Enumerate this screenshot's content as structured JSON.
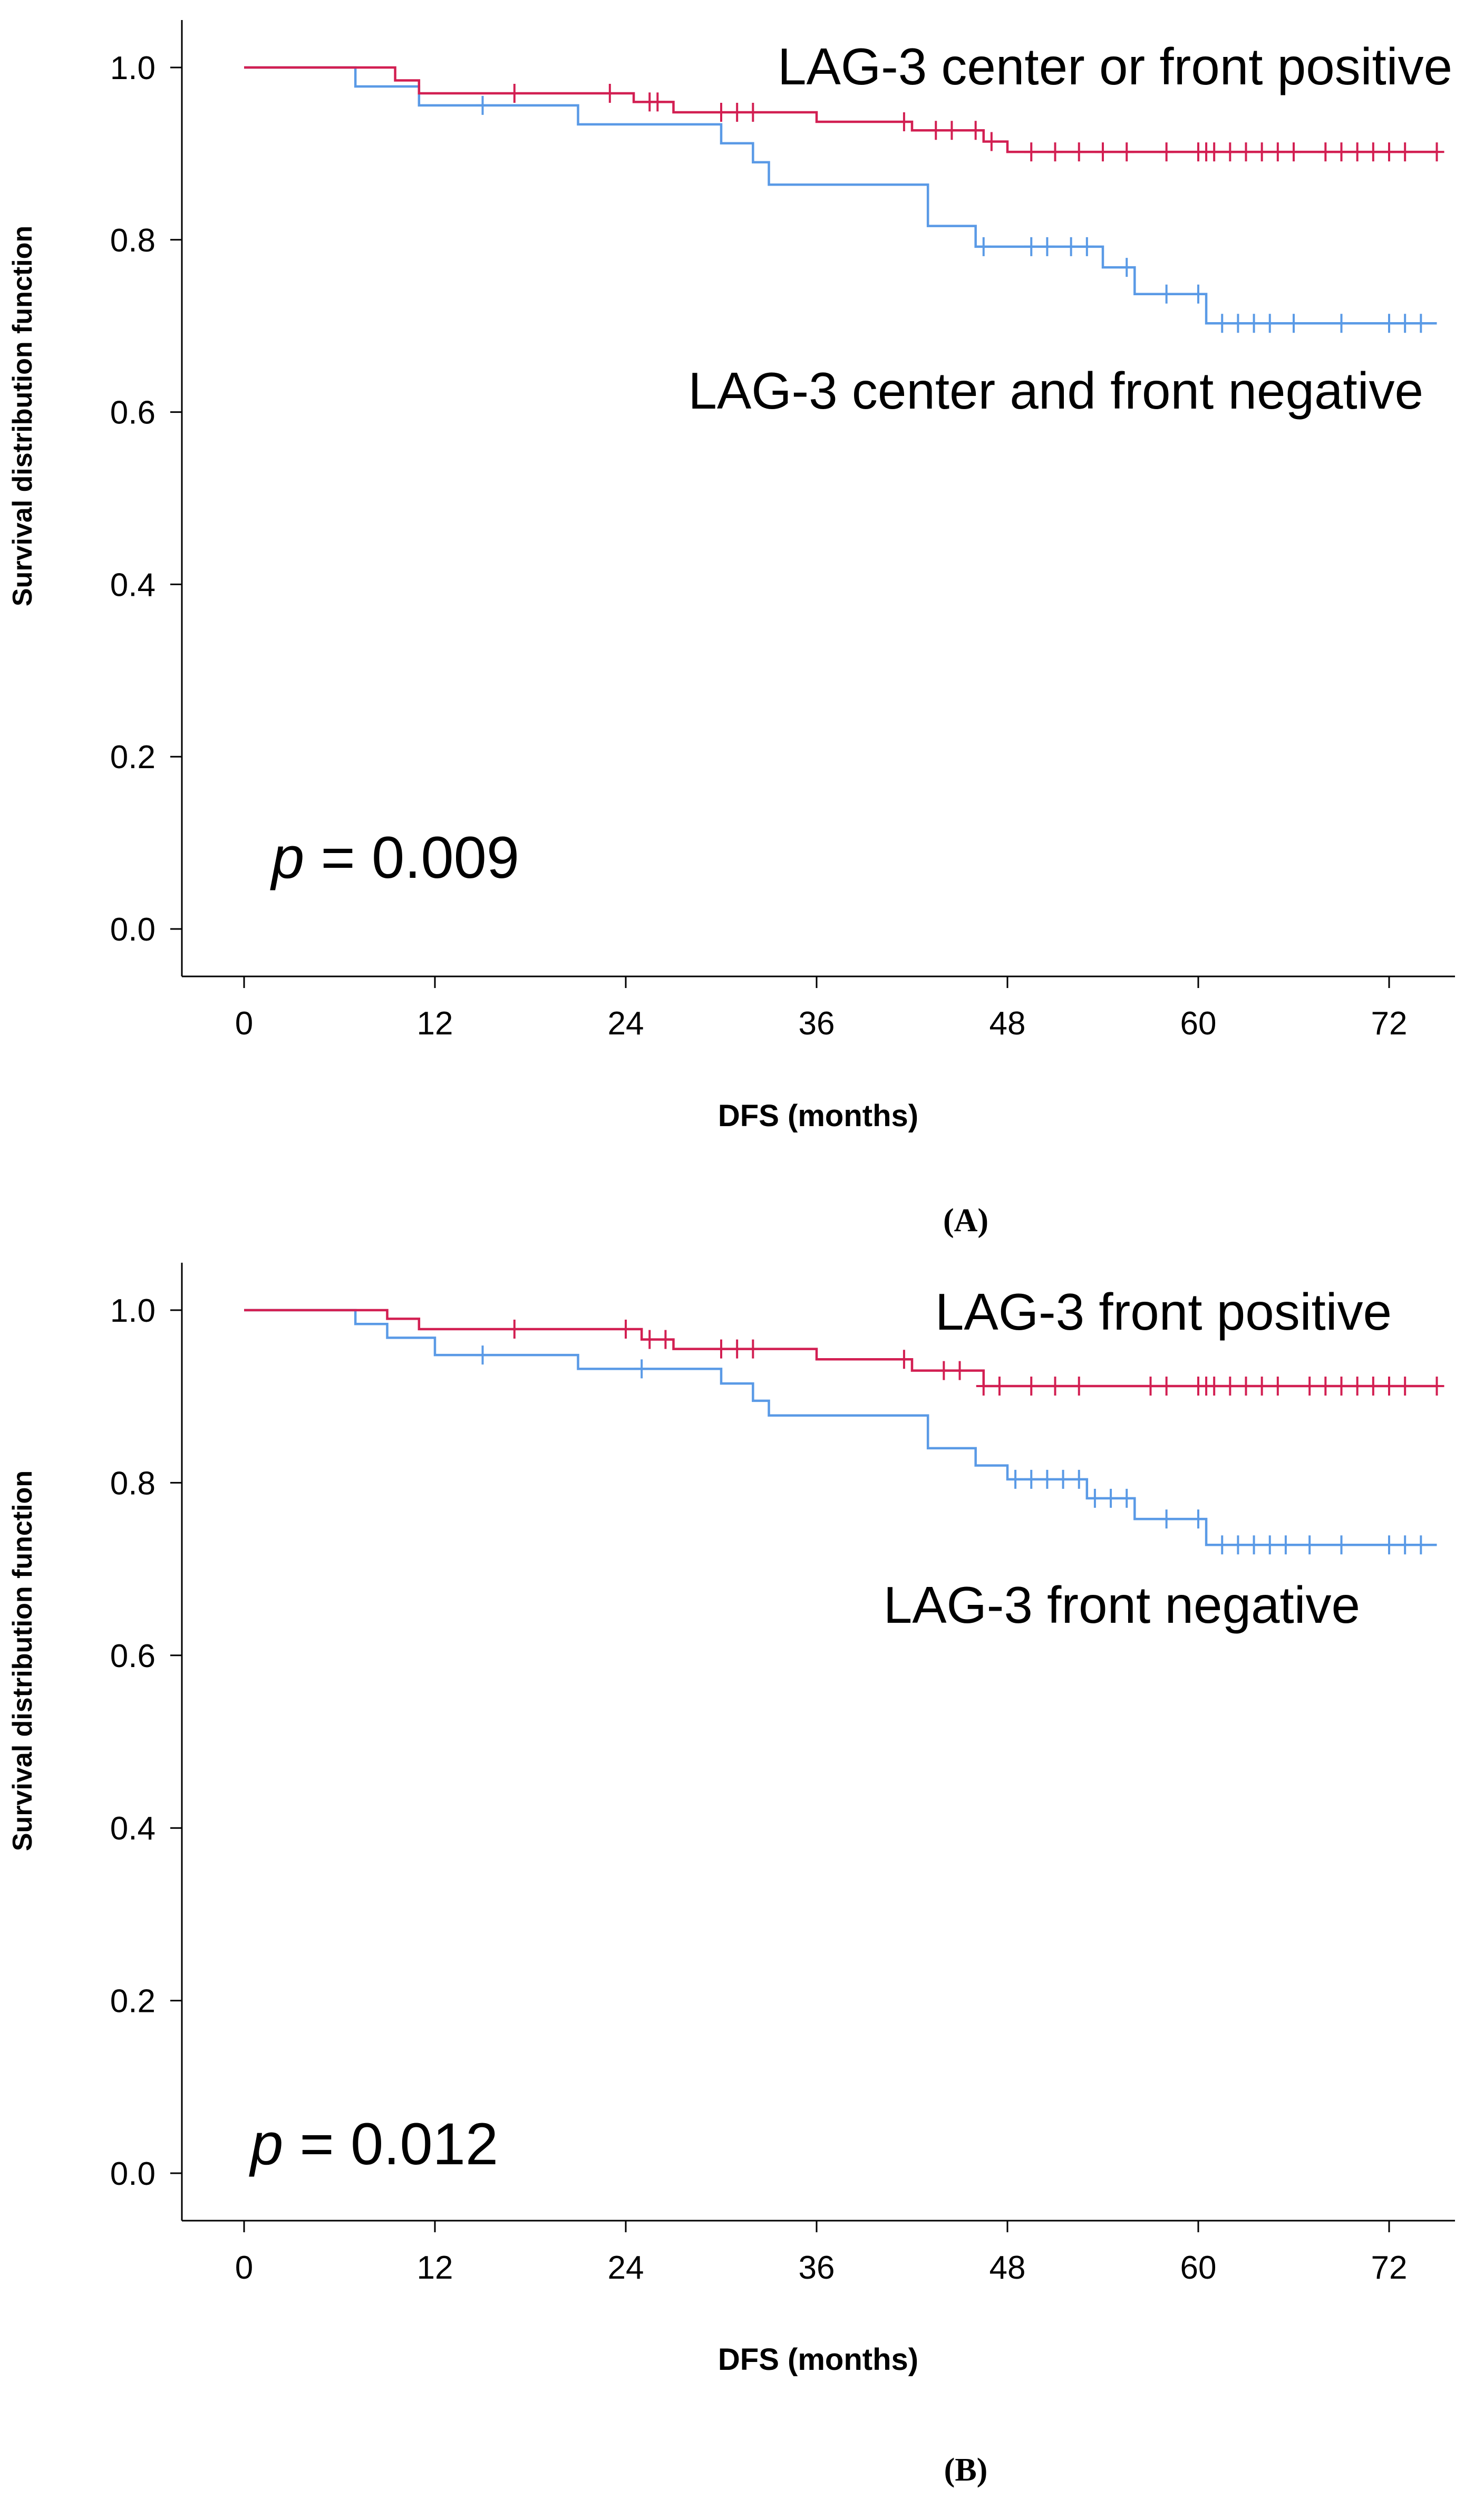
{
  "chart_data": [
    {
      "type": "line",
      "panel": "A",
      "caption": "(A)",
      "xlabel": "DFS (months)",
      "ylabel": "Survival distribution function",
      "xlim": [
        0,
        75
      ],
      "ylim": [
        0,
        1.0
      ],
      "xticks": [
        "0",
        "12",
        "24",
        "36",
        "48",
        "60",
        "72"
      ],
      "yticks": [
        "0.0",
        "0.2",
        "0.4",
        "0.6",
        "0.8",
        "1.0"
      ],
      "p_prefix": "p",
      "p_value": " = 0.009",
      "series": [
        {
          "name": "LAG-3 center or front positive",
          "color": "#d21f52",
          "steps": [
            [
              0,
              1.0
            ],
            [
              9.5,
              0.985
            ],
            [
              11,
              0.97
            ],
            [
              24.5,
              0.96
            ],
            [
              27,
              0.948
            ],
            [
              36,
              0.937
            ],
            [
              42,
              0.927
            ],
            [
              46.5,
              0.914
            ],
            [
              48,
              0.902
            ],
            [
              75,
              0.902
            ]
          ],
          "censors": [
            17,
            23,
            25.5,
            26,
            30,
            31,
            32,
            41.5,
            43.5,
            44.5,
            46,
            47,
            49.5,
            51,
            52.5,
            54,
            55.5,
            58,
            60,
            60.5,
            61,
            62,
            63,
            64,
            65,
            66,
            68,
            69,
            70,
            71,
            72,
            73,
            75
          ]
        },
        {
          "name": "LAG-3 center and front negative",
          "color": "#5a9ae6",
          "steps": [
            [
              0,
              1.0
            ],
            [
              7,
              0.978
            ],
            [
              11,
              0.956
            ],
            [
              21,
              0.934
            ],
            [
              30,
              0.912
            ],
            [
              32,
              0.89
            ],
            [
              33,
              0.864
            ],
            [
              43,
              0.816
            ],
            [
              46,
              0.792
            ],
            [
              54,
              0.768
            ],
            [
              56,
              0.737
            ],
            [
              60.5,
              0.703
            ],
            [
              75,
              0.703
            ]
          ],
          "censors": [
            15,
            46.5,
            49.5,
            50.5,
            52,
            53,
            55.5,
            58,
            60,
            61.5,
            62.5,
            63.5,
            64.5,
            66,
            69,
            72,
            73,
            74
          ]
        }
      ]
    },
    {
      "type": "line",
      "panel": "B",
      "caption": "(B)",
      "xlabel": "DFS (months)",
      "ylabel": "Survival distribution function",
      "xlim": [
        0,
        75
      ],
      "ylim": [
        0,
        1.0
      ],
      "xticks": [
        "0",
        "12",
        "24",
        "36",
        "48",
        "60",
        "72"
      ],
      "yticks": [
        "0.0",
        "0.2",
        "0.4",
        "0.6",
        "0.8",
        "1.0"
      ],
      "p_prefix": "p",
      "p_value": " = 0.012",
      "series": [
        {
          "name": "LAG-3 front positive",
          "color": "#d21f52",
          "steps": [
            [
              0,
              1.0
            ],
            [
              9,
              0.99
            ],
            [
              11,
              0.978
            ],
            [
              25,
              0.966
            ],
            [
              27,
              0.955
            ],
            [
              36,
              0.943
            ],
            [
              42,
              0.93
            ],
            [
              46.5,
              0.912
            ],
            [
              75,
              0.912
            ]
          ],
          "censors": [
            17,
            24,
            25.5,
            26.5,
            30,
            31,
            32,
            41.5,
            44,
            45,
            46.5,
            47.5,
            49.5,
            51,
            52.5,
            57,
            58,
            60,
            60.5,
            61,
            62,
            63,
            64,
            65,
            67,
            68,
            69,
            70,
            71,
            72,
            73,
            75
          ]
        },
        {
          "name": "LAG-3 front negative",
          "color": "#5a9ae6",
          "steps": [
            [
              0,
              1.0
            ],
            [
              7,
              0.984
            ],
            [
              9,
              0.968
            ],
            [
              12,
              0.948
            ],
            [
              21,
              0.932
            ],
            [
              30,
              0.915
            ],
            [
              32,
              0.895
            ],
            [
              33,
              0.878
            ],
            [
              43,
              0.84
            ],
            [
              46,
              0.82
            ],
            [
              48,
              0.804
            ],
            [
              53,
              0.782
            ],
            [
              56,
              0.758
            ],
            [
              60.5,
              0.728
            ],
            [
              75,
              0.728
            ]
          ],
          "censors": [
            15,
            25,
            48.5,
            49.5,
            50.5,
            51.5,
            52.5,
            53.5,
            54.5,
            55.5,
            58,
            60,
            61.5,
            62.5,
            63.5,
            64.5,
            65.5,
            67,
            69,
            72,
            73,
            74
          ]
        }
      ]
    }
  ]
}
